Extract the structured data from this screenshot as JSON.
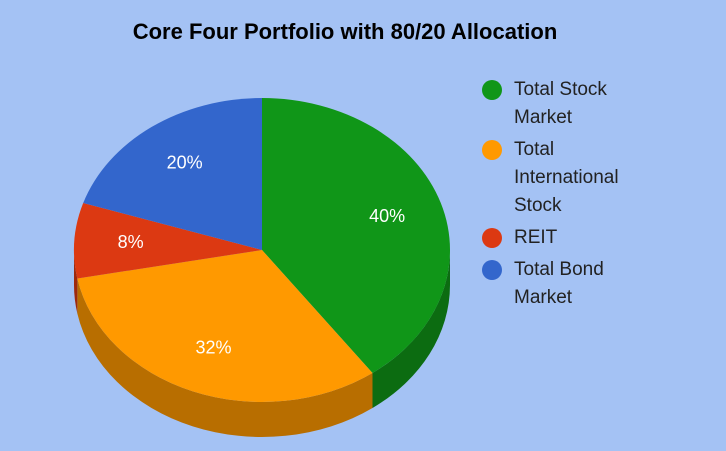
{
  "chart_data": {
    "type": "pie",
    "title": "Core Four Portfolio with 80/20 Allocation",
    "categories": [
      "Total Stock Market",
      "Total International Stock",
      "REIT",
      "Total Bond Market"
    ],
    "values": [
      40,
      32,
      8,
      20
    ],
    "value_labels": [
      "40%",
      "32%",
      "8%",
      "20%"
    ],
    "colors": [
      "#109618",
      "#ff9900",
      "#dc3912",
      "#3366cc"
    ],
    "legend": "right"
  }
}
